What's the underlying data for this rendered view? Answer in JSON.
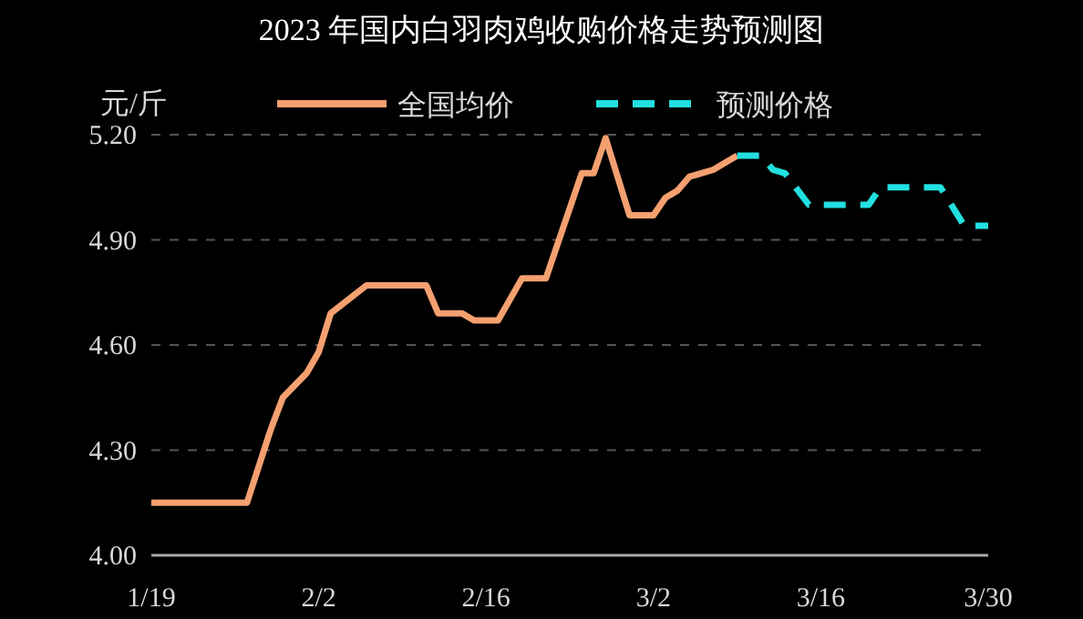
{
  "chart_data": {
    "type": "line",
    "title": "2023 年国内白羽肉鸡收购价格走势预测图",
    "ylabel": "元/斤",
    "series": [
      {
        "name": "全国均价",
        "color": "#f4a070",
        "line_style": "solid",
        "x": [
          "2023-01-19",
          "2023-01-27",
          "2023-01-29",
          "2023-01-30",
          "2023-02-01",
          "2023-02-02",
          "2023-02-03",
          "2023-02-06",
          "2023-02-11",
          "2023-02-12",
          "2023-02-14",
          "2023-02-15",
          "2023-02-17",
          "2023-02-19",
          "2023-02-21",
          "2023-02-24",
          "2023-02-25",
          "2023-02-26",
          "2023-02-28",
          "2023-03-02",
          "2023-03-03",
          "2023-03-04",
          "2023-03-05",
          "2023-03-07",
          "2023-03-09"
        ],
        "values": [
          4.15,
          4.15,
          4.36,
          4.45,
          4.52,
          4.58,
          4.69,
          4.77,
          4.77,
          4.69,
          4.69,
          4.67,
          4.67,
          4.79,
          4.79,
          5.09,
          5.09,
          5.19,
          4.97,
          4.97,
          5.02,
          5.04,
          5.08,
          5.1,
          5.14
        ]
      },
      {
        "name": "预测价格",
        "color": "#22e0e0",
        "line_style": "dashed",
        "x": [
          "2023-03-09",
          "2023-03-11",
          "2023-03-12",
          "2023-03-13",
          "2023-03-15",
          "2023-03-20",
          "2023-03-21",
          "2023-03-26",
          "2023-03-28",
          "2023-03-30"
        ],
        "values": [
          5.14,
          5.14,
          5.1,
          5.09,
          5.0,
          5.0,
          5.05,
          5.05,
          4.94,
          4.94
        ]
      }
    ],
    "xlim": [
      "2023-01-19",
      "2023-03-30"
    ],
    "xticks": [
      {
        "value": "2023-01-19",
        "label": "1/19"
      },
      {
        "value": "2023-02-02",
        "label": "2/2"
      },
      {
        "value": "2023-02-16",
        "label": "2/16"
      },
      {
        "value": "2023-03-02",
        "label": "3/2"
      },
      {
        "value": "2023-03-16",
        "label": "3/16"
      },
      {
        "value": "2023-03-30",
        "label": "3/30"
      }
    ],
    "ylim": [
      4.0,
      5.2
    ],
    "yticks": [
      {
        "value": 4.0,
        "label": "4.00"
      },
      {
        "value": 4.3,
        "label": "4.30"
      },
      {
        "value": 4.6,
        "label": "4.60"
      },
      {
        "value": 4.9,
        "label": "4.90"
      },
      {
        "value": 5.2,
        "label": "5.20"
      }
    ],
    "grid": "y",
    "legend": "top",
    "marker": "none"
  }
}
